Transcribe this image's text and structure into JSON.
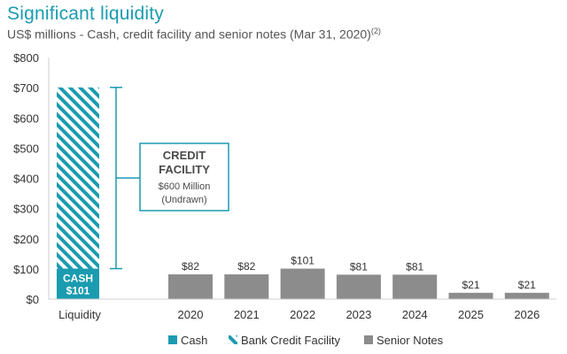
{
  "header": {
    "title": "Significant liquidity",
    "subtitle": "US$ millions - Cash, credit facility and senior notes (Mar 31, 2020)",
    "footnote_mark": "(2)"
  },
  "colors": {
    "cash": "#1a9bb0",
    "credit_facility_stripe": "#1a9bb0",
    "senior_notes": "#8c8c8c",
    "annotation_border": "#1a9bb0",
    "title": "#1a9bb0"
  },
  "chart_data": {
    "type": "bar",
    "ylim": [
      0,
      800
    ],
    "yticks": [
      0,
      100,
      200,
      300,
      400,
      500,
      600,
      700,
      800
    ],
    "ytick_labels": [
      "$0",
      "$100",
      "$200",
      "$300",
      "$400",
      "$500",
      "$600",
      "$700",
      "$800"
    ],
    "grid": false,
    "legend_position": "bottom",
    "liquidity_bar": {
      "category": "Liquidity",
      "cash": 101,
      "credit_facility": 600,
      "cash_label_line1": "CASH",
      "cash_label_line2": "$101"
    },
    "annotation": {
      "line1": "CREDIT",
      "line2": "FACILITY",
      "line3": "$600 Million",
      "line4": "(Undrawn)"
    },
    "senior_notes": {
      "categories": [
        "2020",
        "2021",
        "2022",
        "2023",
        "2024",
        "2025",
        "2026"
      ],
      "values": [
        82,
        82,
        101,
        81,
        81,
        21,
        21
      ],
      "labels": [
        "$82",
        "$82",
        "$101",
        "$81",
        "$81",
        "$21",
        "$21"
      ]
    },
    "legend": [
      {
        "key": "cash",
        "label": "Cash"
      },
      {
        "key": "credit",
        "label": "Bank Credit Facility"
      },
      {
        "key": "notes",
        "label": "Senior Notes"
      }
    ]
  }
}
